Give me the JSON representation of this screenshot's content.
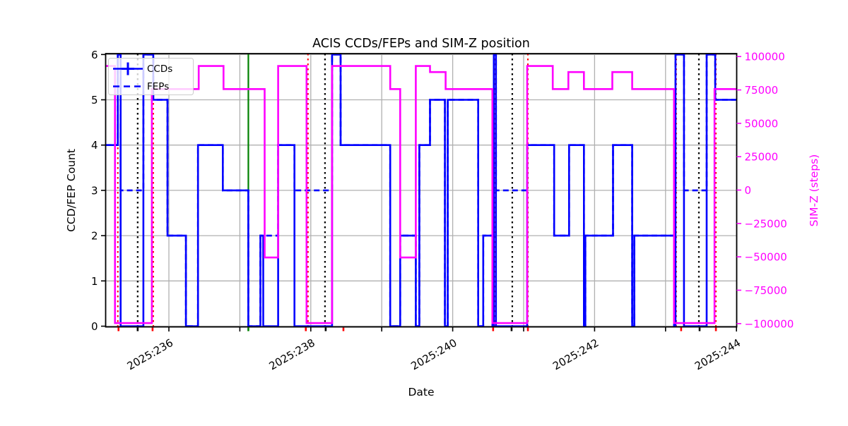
{
  "chart_data": {
    "type": "line",
    "step_mode": "post",
    "title": "ACIS CCDs/FEPs and SIM-Z position",
    "xlabel": "Date",
    "ylabel_left": "CCD/FEP Count",
    "ylabel_right": "SIM-Z (steps)",
    "x_range_days": [
      235.105,
      243.995
    ],
    "ylim_left": [
      0,
      6
    ],
    "ylim_right": [
      -100000,
      100000
    ],
    "grid": true,
    "legend": {
      "position": "upper-left",
      "entries": [
        {
          "label": "CCDs",
          "style": "solid",
          "marker": "plus"
        },
        {
          "label": "FEPs",
          "style": "dashed",
          "marker": "none"
        }
      ]
    },
    "colors": {
      "ccds": "#0000ff",
      "feps": "#0000ff",
      "simz": "#ff00ff",
      "grid": "#b0b0b0",
      "frame": "#000000",
      "black_line": "#000000",
      "red_line": "#ff0000",
      "green_line": "#008000"
    },
    "x_ticks": [
      {
        "day": 236,
        "label": "2025:236"
      },
      {
        "day": 237,
        "label": ""
      },
      {
        "day": 238,
        "label": "2025:238"
      },
      {
        "day": 239,
        "label": ""
      },
      {
        "day": 240,
        "label": "2025:240"
      },
      {
        "day": 241,
        "label": ""
      },
      {
        "day": 242,
        "label": "2025:242"
      },
      {
        "day": 243,
        "label": ""
      },
      {
        "day": 244,
        "label": "2025:244"
      }
    ],
    "left_ticks": [
      {
        "v": 0,
        "label": "0"
      },
      {
        "v": 1,
        "label": "1"
      },
      {
        "v": 2,
        "label": "2"
      },
      {
        "v": 3,
        "label": "3"
      },
      {
        "v": 4,
        "label": "4"
      },
      {
        "v": 5,
        "label": "5"
      },
      {
        "v": 6,
        "label": "6"
      }
    ],
    "right_ticks": [
      {
        "v": 100000,
        "label": "100000"
      },
      {
        "v": 75000,
        "label": "75000"
      },
      {
        "v": 50000,
        "label": "50000"
      },
      {
        "v": 25000,
        "label": "25000"
      },
      {
        "v": 0,
        "label": "0"
      },
      {
        "v": -25000,
        "label": "−25000"
      },
      {
        "v": -50000,
        "label": "−50000"
      },
      {
        "v": -75000,
        "label": "−75000"
      },
      {
        "v": -100000,
        "label": "−100000"
      }
    ],
    "series": {
      "ccds": {
        "label": "CCDs",
        "axis": "left",
        "x_end": 243.995,
        "points": [
          [
            235.11,
            4
          ],
          [
            235.28,
            6
          ],
          [
            235.32,
            0
          ],
          [
            235.64,
            6
          ],
          [
            235.78,
            5
          ],
          [
            235.98,
            2
          ],
          [
            236.24,
            0
          ],
          [
            236.41,
            4
          ],
          [
            236.76,
            3
          ],
          [
            237.12,
            0
          ],
          [
            237.29,
            2
          ],
          [
            237.33,
            0
          ],
          [
            237.54,
            4
          ],
          [
            237.77,
            0
          ],
          [
            238.3,
            6
          ],
          [
            238.42,
            4
          ],
          [
            239.12,
            0
          ],
          [
            239.26,
            2
          ],
          [
            239.48,
            0
          ],
          [
            239.53,
            4
          ],
          [
            239.68,
            5
          ],
          [
            239.89,
            0
          ],
          [
            239.93,
            5
          ],
          [
            240.36,
            0
          ],
          [
            240.43,
            2
          ],
          [
            240.56,
            0
          ],
          [
            240.58,
            6
          ],
          [
            240.61,
            0
          ],
          [
            241.05,
            4
          ],
          [
            241.43,
            2
          ],
          [
            241.64,
            4
          ],
          [
            241.85,
            0
          ],
          [
            241.87,
            2
          ],
          [
            242.26,
            4
          ],
          [
            242.53,
            0
          ],
          [
            242.56,
            2
          ],
          [
            243.12,
            0
          ],
          [
            243.14,
            6
          ],
          [
            243.26,
            0
          ],
          [
            243.58,
            6
          ],
          [
            243.7,
            5
          ]
        ]
      },
      "feps": {
        "label": "FEPs",
        "axis": "left",
        "x_end": 243.995,
        "points": [
          [
            235.11,
            4
          ],
          [
            235.28,
            6
          ],
          [
            235.32,
            3
          ],
          [
            235.64,
            6
          ],
          [
            235.78,
            5
          ],
          [
            235.98,
            2
          ],
          [
            236.24,
            0
          ],
          [
            236.41,
            4
          ],
          [
            236.76,
            3
          ],
          [
            237.12,
            0
          ],
          [
            237.29,
            2
          ],
          [
            237.54,
            4
          ],
          [
            237.77,
            3
          ],
          [
            238.3,
            6
          ],
          [
            238.42,
            4
          ],
          [
            239.12,
            0
          ],
          [
            239.26,
            2
          ],
          [
            239.48,
            0
          ],
          [
            239.53,
            4
          ],
          [
            239.68,
            5
          ],
          [
            239.89,
            0
          ],
          [
            239.93,
            5
          ],
          [
            240.36,
            0
          ],
          [
            240.43,
            2
          ],
          [
            240.58,
            6
          ],
          [
            240.61,
            3
          ],
          [
            241.05,
            4
          ],
          [
            241.43,
            2
          ],
          [
            241.64,
            4
          ],
          [
            241.85,
            0
          ],
          [
            241.87,
            2
          ],
          [
            242.26,
            4
          ],
          [
            242.53,
            0
          ],
          [
            242.56,
            2
          ],
          [
            243.12,
            3
          ],
          [
            243.14,
            6
          ],
          [
            243.26,
            3
          ],
          [
            243.58,
            6
          ],
          [
            243.7,
            5
          ]
        ]
      },
      "simz": {
        "label": "SIM-Z",
        "axis": "right",
        "x_end": 243.995,
        "points": [
          [
            235.11,
            92904
          ],
          [
            235.24,
            -99612
          ],
          [
            235.76,
            75624
          ],
          [
            236.42,
            92904
          ],
          [
            236.77,
            75624
          ],
          [
            237.35,
            -50505
          ],
          [
            237.54,
            92904
          ],
          [
            237.94,
            -99612
          ],
          [
            238.3,
            92904
          ],
          [
            239.12,
            75624
          ],
          [
            239.26,
            -50505
          ],
          [
            239.48,
            92904
          ],
          [
            239.68,
            88400
          ],
          [
            239.9,
            75624
          ],
          [
            240.56,
            -99612
          ],
          [
            241.05,
            92904
          ],
          [
            241.41,
            75624
          ],
          [
            241.63,
            88400
          ],
          [
            241.85,
            75624
          ],
          [
            242.25,
            88400
          ],
          [
            242.53,
            75624
          ],
          [
            243.12,
            -99612
          ],
          [
            243.69,
            75624
          ]
        ]
      }
    },
    "vlines": {
      "black_dotted": [
        235.56,
        238.2,
        240.84,
        243.47
      ],
      "red_dotted": [
        235.28,
        235.78,
        237.96,
        240.59,
        241.06,
        243.15,
        243.71
      ],
      "green_solid": [
        237.12
      ]
    },
    "axis_marks": {
      "red": [
        235.29,
        235.77,
        237.93,
        238.46,
        240.57,
        241.06,
        243.22,
        243.71
      ],
      "black": [
        235.56,
        238.21,
        240.83,
        243.48
      ],
      "green": [
        237.12
      ]
    }
  }
}
